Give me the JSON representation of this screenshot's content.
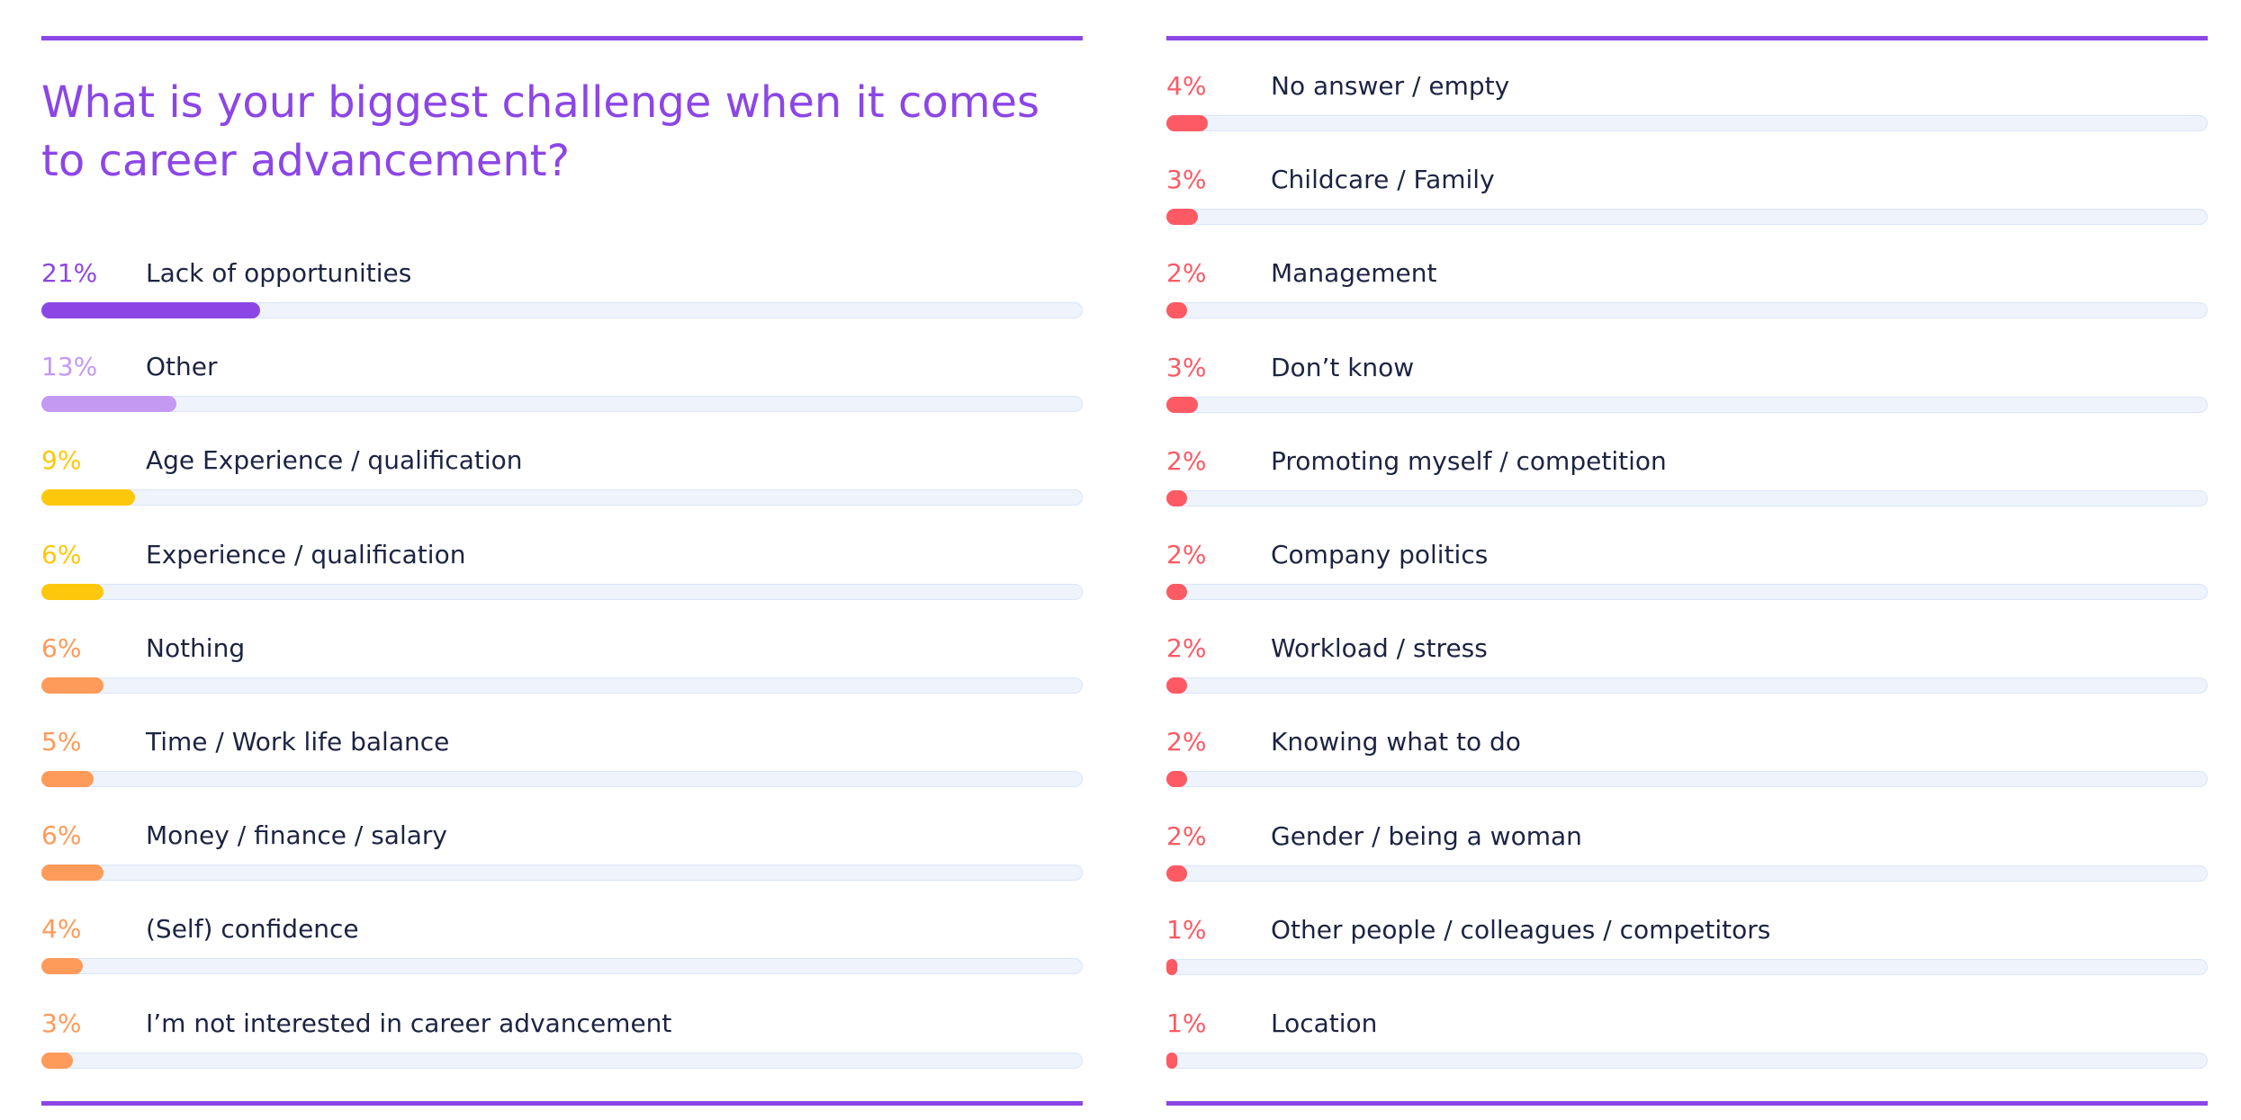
{
  "chart_data": {
    "type": "bar",
    "title": "What is your biggest challenge when it comes to career advancement?",
    "orientation": "horizontal",
    "xlim": [
      0,
      100
    ],
    "unit": "%",
    "columns": [
      {
        "items": [
          {
            "label": "Lack of opportunities",
            "value": 21,
            "pct_label": "21%",
            "color": "#8c46e6"
          },
          {
            "label": "Other",
            "value": 13,
            "pct_label": "13%",
            "color": "#c399f2"
          },
          {
            "label": "Age Experience / qualification",
            "value": 9,
            "pct_label": "9%",
            "color": "#fdc80c"
          },
          {
            "label": "Experience / qualification",
            "value": 6,
            "pct_label": "6%",
            "color": "#fdc80c"
          },
          {
            "label": "Nothing",
            "value": 6,
            "pct_label": "6%",
            "color": "#fe9a5a"
          },
          {
            "label": "Time / Work life balance",
            "value": 5,
            "pct_label": "5%",
            "color": "#fe9a5a"
          },
          {
            "label": "Money / finance / salary",
            "value": 6,
            "pct_label": "6%",
            "color": "#fe9a5a"
          },
          {
            "label": "(Self) confidence",
            "value": 4,
            "pct_label": "4%",
            "color": "#fe9a5a"
          },
          {
            "label": "I’m not interested in career advancement",
            "value": 3,
            "pct_label": "3%",
            "color": "#fe9a5a"
          }
        ]
      },
      {
        "items": [
          {
            "label": "No answer / empty",
            "value": 4,
            "pct_label": "4%",
            "color": "#fd5a64"
          },
          {
            "label": "Childcare / Family",
            "value": 3,
            "pct_label": "3%",
            "color": "#fd5a64"
          },
          {
            "label": "Management",
            "value": 2,
            "pct_label": "2%",
            "color": "#fd5a64"
          },
          {
            "label": "Don’t know",
            "value": 3,
            "pct_label": "3%",
            "color": "#fd5a64"
          },
          {
            "label": "Promoting myself / competition",
            "value": 2,
            "pct_label": "2%",
            "color": "#fd5a64"
          },
          {
            "label": "Company politics",
            "value": 2,
            "pct_label": "2%",
            "color": "#fd5a64"
          },
          {
            "label": "Workload / stress",
            "value": 2,
            "pct_label": "2%",
            "color": "#fd5a64"
          },
          {
            "label": "Knowing what to do",
            "value": 2,
            "pct_label": "2%",
            "color": "#fd5a64"
          },
          {
            "label": "Gender / being a woman",
            "value": 2,
            "pct_label": "2%",
            "color": "#fd5a64"
          },
          {
            "label": "Other people / colleagues / competitors",
            "value": 1,
            "pct_label": "1%",
            "color": "#fd5a64"
          },
          {
            "label": "Location",
            "value": 1,
            "pct_label": "1%",
            "color": "#fd5a64"
          }
        ]
      }
    ]
  }
}
